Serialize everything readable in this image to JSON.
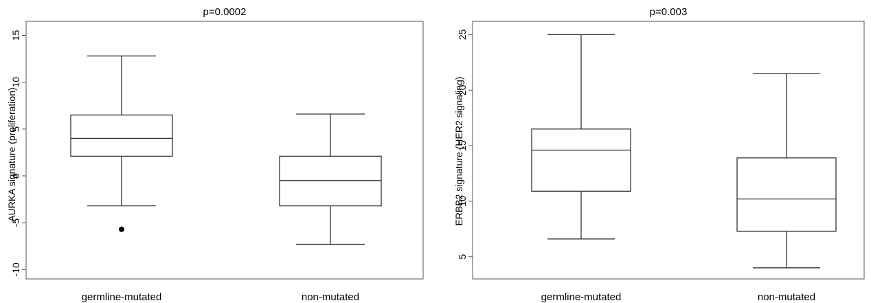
{
  "chart_data": [
    {
      "type": "box",
      "title": "p=0.0002",
      "ylabel": "AURKA signature (proliferation)",
      "ylim": [
        -11,
        16.5
      ],
      "yticks": [
        -10,
        -5,
        0,
        5,
        10,
        15
      ],
      "ytick_labels": [
        "-10",
        "-5",
        "0",
        "5",
        "10",
        "15"
      ],
      "categories": [
        "germline-mutated",
        "non-mutated"
      ],
      "boxes": [
        {
          "whisker_low": -3.2,
          "q1": 2.1,
          "median": 4.0,
          "q3": 6.5,
          "whisker_high": 12.8,
          "outliers": [
            -5.7
          ]
        },
        {
          "whisker_low": -7.3,
          "q1": -3.2,
          "median": -0.5,
          "q3": 2.1,
          "whisker_high": 6.6,
          "outliers": []
        }
      ]
    },
    {
      "type": "box",
      "title": "p=0.003",
      "ylabel": "ERBB2 signature (HER2 signaling)",
      "ylim": [
        3,
        26.2
      ],
      "yticks": [
        5,
        10,
        15,
        20,
        25
      ],
      "ytick_labels": [
        "5",
        "10",
        "15",
        "20",
        "25"
      ],
      "categories": [
        "germline-mutated",
        "non-mutated"
      ],
      "boxes": [
        {
          "whisker_low": 6.6,
          "q1": 10.9,
          "median": 14.6,
          "q3": 16.5,
          "whisker_high": 25.0,
          "outliers": []
        },
        {
          "whisker_low": 4.0,
          "q1": 7.3,
          "median": 10.2,
          "q3": 13.9,
          "whisker_high": 21.5,
          "outliers": []
        }
      ]
    }
  ]
}
